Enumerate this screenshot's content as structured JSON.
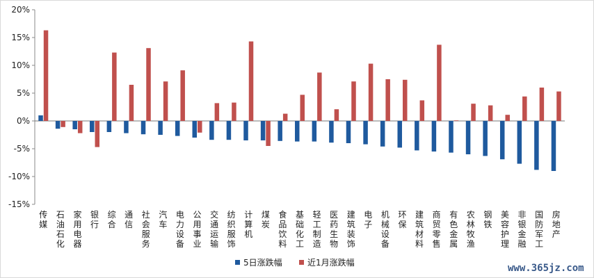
{
  "chart_data": {
    "type": "bar",
    "categories": [
      "传媒",
      "石油石化",
      "家用电器",
      "银行",
      "综合",
      "通信",
      "社会服务",
      "汽车",
      "电力设备",
      "公用事业",
      "交通运输",
      "纺织服饰",
      "计算机",
      "煤炭",
      "食品饮料",
      "基础化工",
      "轻工制造",
      "医药生物",
      "建筑装饰",
      "电子",
      "机械设备",
      "环保",
      "建筑材料",
      "商贸零售",
      "有色金属",
      "农林牧渔",
      "钢铁",
      "美容护理",
      "非银金融",
      "国防军工",
      "房地产"
    ],
    "series": [
      {
        "name": "5日涨跌幅",
        "color": "#1f5a9e",
        "values": [
          1.0,
          -1.4,
          -1.5,
          -2.0,
          -2.0,
          -2.2,
          -2.4,
          -2.5,
          -2.7,
          -3.0,
          -3.4,
          -3.4,
          -3.5,
          -3.5,
          -3.6,
          -3.7,
          -3.7,
          -3.9,
          -4.0,
          -4.2,
          -4.6,
          -4.8,
          -5.3,
          -5.5,
          -5.7,
          -6.0,
          -6.3,
          -6.9,
          -7.7,
          -8.8,
          -9.0
        ]
      },
      {
        "name": "近1月涨跌幅",
        "color": "#c0504d",
        "values": [
          16.3,
          -1.1,
          -2.2,
          -4.7,
          12.3,
          6.5,
          13.1,
          7.1,
          9.1,
          -2.1,
          3.2,
          3.3,
          14.3,
          -4.5,
          1.3,
          4.7,
          8.7,
          2.1,
          7.1,
          10.3,
          7.5,
          7.4,
          3.7,
          13.7,
          0.1,
          3.1,
          2.8,
          1.1,
          4.4,
          6.0,
          5.3
        ]
      }
    ],
    "yticks": [
      "20%",
      "15%",
      "10%",
      "5%",
      "0%",
      "-5%",
      "-10%",
      "-15%"
    ],
    "ylim": [
      -15,
      20
    ],
    "legend": "bottom"
  },
  "watermark": "www.365jz.com"
}
